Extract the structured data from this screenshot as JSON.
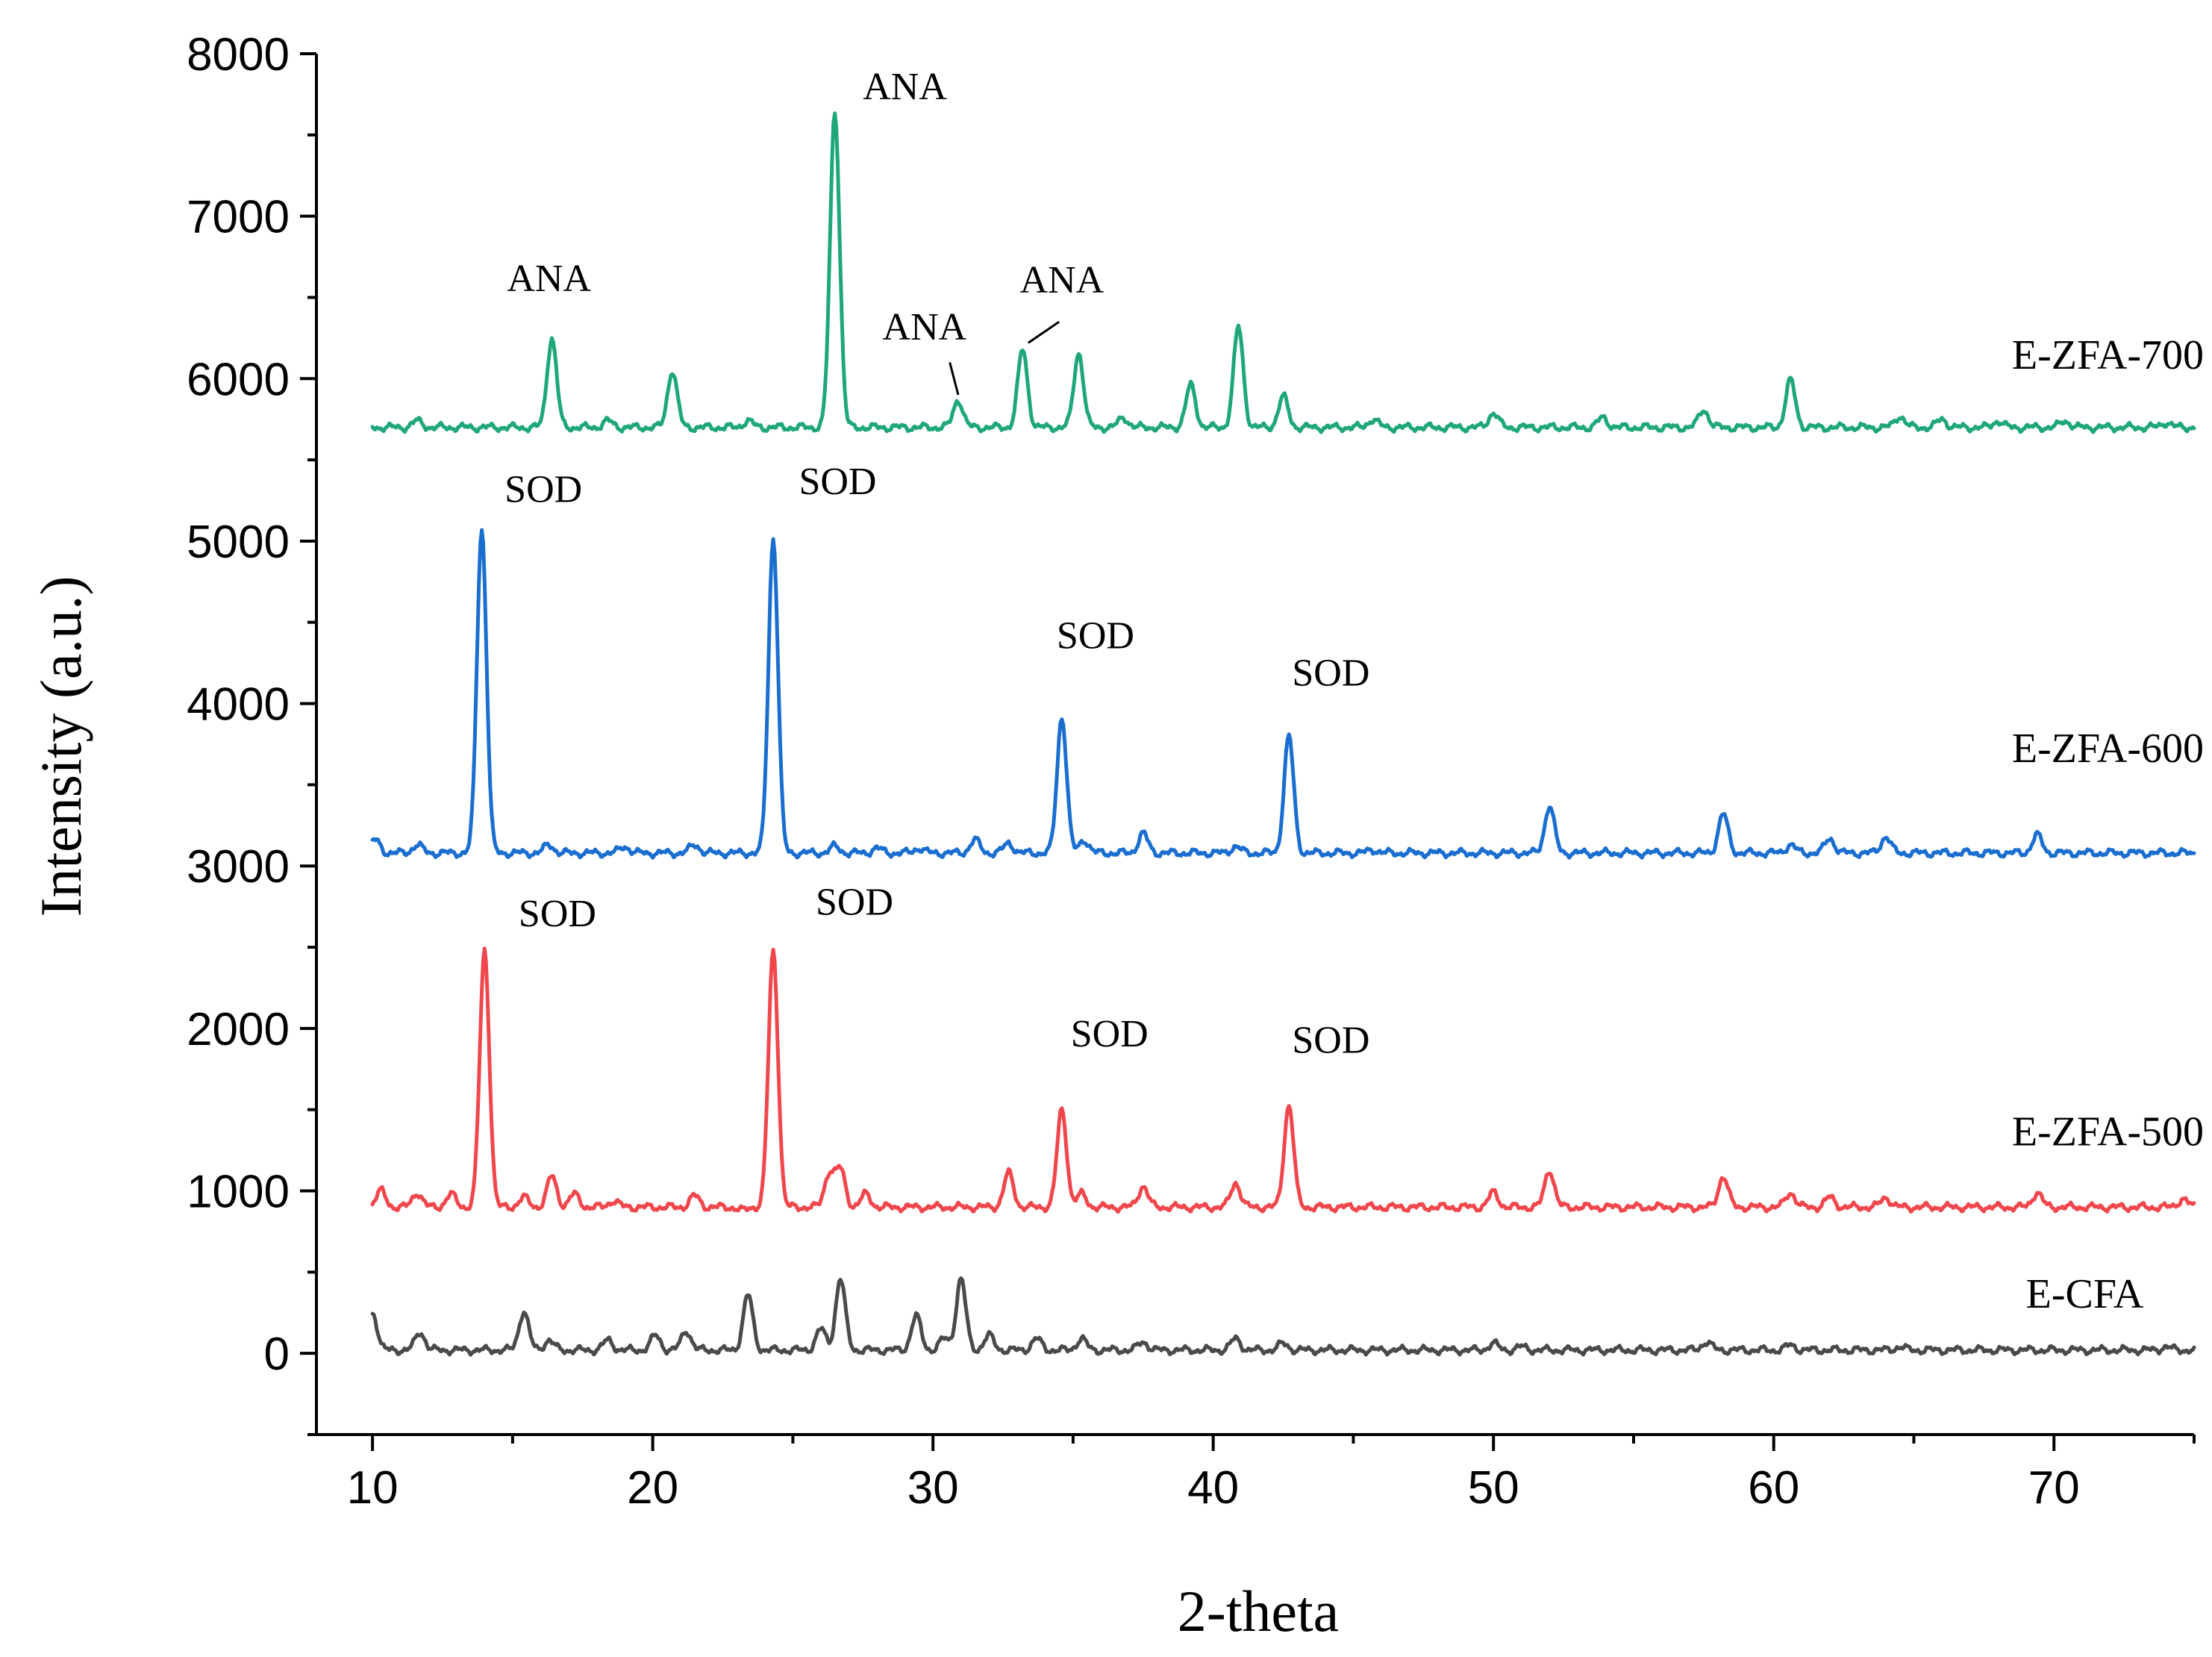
{
  "chart_data": {
    "type": "line",
    "title": "",
    "xlabel": "2-theta",
    "ylabel": "Intensity (a.u.)",
    "xlim": [
      8,
      75
    ],
    "ylim": [
      -500,
      8000
    ],
    "xticks": [
      10,
      20,
      30,
      40,
      50,
      60,
      70
    ],
    "yticks": [
      0,
      1000,
      2000,
      3000,
      4000,
      5000,
      6000,
      7000,
      8000
    ],
    "grid": false,
    "series": [
      {
        "name": "E-CFA",
        "color": "#4a4a4a",
        "baseline": 20,
        "label_at": [
          69,
          280
        ],
        "peaks": [
          [
            10.0,
            250
          ],
          [
            11.7,
            130
          ],
          [
            15.4,
            260
          ],
          [
            16.3,
            80
          ],
          [
            18.4,
            80
          ],
          [
            20.1,
            110
          ],
          [
            21.2,
            140
          ],
          [
            23.4,
            360
          ],
          [
            26.0,
            150
          ],
          [
            26.7,
            460
          ],
          [
            29.4,
            230
          ],
          [
            30.4,
            90
          ],
          [
            31.0,
            460
          ],
          [
            32.0,
            110
          ],
          [
            33.7,
            90
          ],
          [
            35.3,
            90
          ],
          [
            37.5,
            70
          ],
          [
            40.8,
            90
          ],
          [
            42.5,
            60
          ],
          [
            50.0,
            60
          ],
          [
            51.0,
            40
          ],
          [
            57.6,
            70
          ],
          [
            60.6,
            50
          ],
          [
            64.5,
            40
          ],
          [
            74.0,
            40
          ]
        ]
      },
      {
        "name": "E-ZFA-500",
        "color": "#f0474c",
        "baseline": 900,
        "label_at": [
          68.5,
          1280
        ],
        "peaks": [
          [
            10.3,
            1000
          ],
          [
            11.6,
            990
          ],
          [
            12.8,
            980
          ],
          [
            14.0,
            2480
          ],
          [
            15.4,
            960
          ],
          [
            16.4,
            1090
          ],
          [
            17.2,
            980
          ],
          [
            18.6,
            940
          ],
          [
            21.5,
            970
          ],
          [
            23.2,
            880
          ],
          [
            24.3,
            2480
          ],
          [
            26.3,
            1110
          ],
          [
            26.7,
            1130
          ],
          [
            27.6,
            980
          ],
          [
            32.7,
            1110
          ],
          [
            34.6,
            1500
          ],
          [
            35.3,
            980
          ],
          [
            37.5,
            1030
          ],
          [
            40.8,
            1050
          ],
          [
            42.7,
            1530
          ],
          [
            50.0,
            990
          ],
          [
            52.0,
            1130
          ],
          [
            58.2,
            1090
          ],
          [
            60.6,
            990
          ],
          [
            62.0,
            960
          ],
          [
            64.0,
            960
          ],
          [
            69.4,
            990
          ],
          [
            74.6,
            950
          ]
        ]
      },
      {
        "name": "E-ZFA-600",
        "color": "#1a6ed0",
        "baseline": 3080,
        "label_at": [
          68.5,
          3640
        ],
        "peaks": [
          [
            10.1,
            3160
          ],
          [
            11.6,
            3130
          ],
          [
            13.9,
            5080
          ],
          [
            16.3,
            3130
          ],
          [
            19.0,
            3120
          ],
          [
            21.5,
            3130
          ],
          [
            24.3,
            5020
          ],
          [
            26.5,
            3120
          ],
          [
            28.0,
            3110
          ],
          [
            29.5,
            3110
          ],
          [
            31.5,
            3160
          ],
          [
            32.7,
            3140
          ],
          [
            34.6,
            3920
          ],
          [
            35.4,
            3160
          ],
          [
            37.5,
            3200
          ],
          [
            40.8,
            3120
          ],
          [
            42.7,
            3800
          ],
          [
            45.7,
            3100
          ],
          [
            52.0,
            3370
          ],
          [
            58.2,
            3320
          ],
          [
            60.6,
            3130
          ],
          [
            62.0,
            3170
          ],
          [
            64.0,
            3180
          ],
          [
            69.4,
            3190
          ]
        ]
      },
      {
        "name": "E-ZFA-700",
        "color": "#1fa77a",
        "baseline": 5700,
        "label_at": [
          68.5,
          6060
        ],
        "peaks": [
          [
            11.6,
            5740
          ],
          [
            16.4,
            6250
          ],
          [
            18.4,
            5740
          ],
          [
            20.7,
            6050
          ],
          [
            23.4,
            5740
          ],
          [
            26.5,
            7650
          ],
          [
            30.9,
            5870
          ],
          [
            33.2,
            6180
          ],
          [
            35.2,
            6160
          ],
          [
            36.8,
            5760
          ],
          [
            39.2,
            5960
          ],
          [
            40.9,
            6320
          ],
          [
            42.5,
            5890
          ],
          [
            45.7,
            5750
          ],
          [
            50.0,
            5790
          ],
          [
            53.9,
            5760
          ],
          [
            57.5,
            5810
          ],
          [
            60.6,
            5990
          ],
          [
            64.5,
            5770
          ],
          [
            66.0,
            5750
          ],
          [
            68.0,
            5740
          ],
          [
            70.4,
            5740
          ],
          [
            74.0,
            5730
          ]
        ]
      }
    ],
    "annotations": [
      {
        "text": "ANA",
        "x": 16.3,
        "y": 6540
      },
      {
        "text": "ANA",
        "x": 29.7,
        "y": 6240
      },
      {
        "text": "ANA",
        "x": 34.6,
        "y": 6530
      },
      {
        "text": "ANA",
        "x": 29.0,
        "y": 7720
      },
      {
        "text": "SOD",
        "x": 16.1,
        "y": 5240
      },
      {
        "text": "SOD",
        "x": 26.6,
        "y": 5290
      },
      {
        "text": "SOD",
        "x": 35.8,
        "y": 4340
      },
      {
        "text": "SOD",
        "x": 44.2,
        "y": 4110
      },
      {
        "text": "SOD",
        "x": 16.6,
        "y": 2630
      },
      {
        "text": "SOD",
        "x": 27.2,
        "y": 2700
      },
      {
        "text": "SOD",
        "x": 36.3,
        "y": 1890
      },
      {
        "text": "SOD",
        "x": 44.2,
        "y": 1850
      }
    ],
    "leaders": [
      {
        "from": [
          30.6,
          6100
        ],
        "to": [
          30.9,
          5900
        ]
      },
      {
        "from": [
          34.5,
          6350
        ],
        "to": [
          33.4,
          6220
        ]
      }
    ]
  }
}
